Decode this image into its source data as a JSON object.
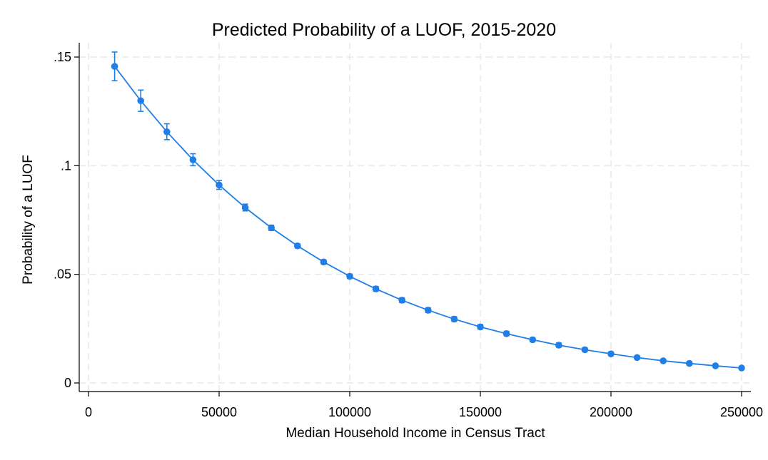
{
  "chart_data": {
    "type": "line",
    "title": "Predicted Probability of a LUOF, 2015-2020",
    "xlabel": "Median Household Income in Census Tract",
    "ylabel": "Probability of a LUOF",
    "xlim": [
      0,
      250000
    ],
    "ylim": [
      0,
      0.15
    ],
    "x_ticks": [
      {
        "value": 0,
        "label": "0"
      },
      {
        "value": 50000,
        "label": "50000"
      },
      {
        "value": 100000,
        "label": "100000"
      },
      {
        "value": 150000,
        "label": "150000"
      },
      {
        "value": 200000,
        "label": "200000"
      },
      {
        "value": 250000,
        "label": "250000"
      }
    ],
    "y_ticks": [
      {
        "value": 0,
        "label": "0"
      },
      {
        "value": 0.05,
        "label": ".05"
      },
      {
        "value": 0.1,
        "label": ".1"
      },
      {
        "value": 0.15,
        "label": ".15"
      }
    ],
    "grid": true,
    "legend": "none",
    "color": "#1f7fe6",
    "series": [
      {
        "x": [
          10000,
          20000,
          30000,
          40000,
          50000,
          60000,
          70000,
          80000,
          90000,
          100000,
          110000,
          120000,
          130000,
          140000,
          150000,
          160000,
          170000,
          180000,
          190000,
          200000,
          210000,
          220000,
          230000,
          240000,
          250000
        ],
        "y": [
          0.1457,
          0.1299,
          0.1156,
          0.1027,
          0.0911,
          0.0807,
          0.0714,
          0.0631,
          0.0557,
          0.0491,
          0.0433,
          0.0381,
          0.0335,
          0.0294,
          0.0258,
          0.0227,
          0.0199,
          0.0174,
          0.0153,
          0.0134,
          0.0117,
          0.0102,
          0.009,
          0.0079,
          0.0069
        ],
        "ci_low": [
          0.1391,
          0.125,
          0.112,
          0.1,
          0.0891,
          0.0792,
          0.0702,
          0.0621,
          0.0547,
          0.0481,
          0.0422,
          0.037,
          0.0324,
          0.0283,
          0.0248,
          0.0217,
          0.0189,
          0.0165,
          0.0144,
          0.0126,
          0.011,
          0.0095,
          0.0083,
          0.0073,
          0.0063
        ],
        "ci_high": [
          0.1523,
          0.1348,
          0.1193,
          0.1055,
          0.0932,
          0.0823,
          0.0726,
          0.0641,
          0.0567,
          0.0501,
          0.0444,
          0.0392,
          0.0346,
          0.0305,
          0.0269,
          0.0238,
          0.0209,
          0.0184,
          0.0162,
          0.0143,
          0.0125,
          0.0109,
          0.0097,
          0.0085,
          0.0075
        ]
      }
    ]
  }
}
